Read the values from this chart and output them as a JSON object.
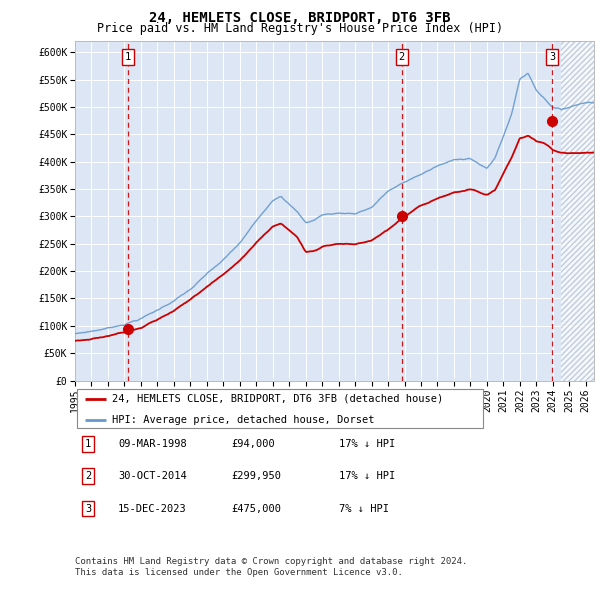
{
  "title": "24, HEMLETS CLOSE, BRIDPORT, DT6 3FB",
  "subtitle": "Price paid vs. HM Land Registry's House Price Index (HPI)",
  "ylim": [
    0,
    620000
  ],
  "yticks": [
    0,
    50000,
    100000,
    150000,
    200000,
    250000,
    300000,
    350000,
    400000,
    450000,
    500000,
    550000,
    600000
  ],
  "ytick_labels": [
    "£0",
    "£50K",
    "£100K",
    "£150K",
    "£200K",
    "£250K",
    "£300K",
    "£350K",
    "£400K",
    "£450K",
    "£500K",
    "£550K",
    "£600K"
  ],
  "xlim_start": 1995.0,
  "xlim_end": 2026.5,
  "hpi_color": "#6699cc",
  "price_color": "#cc0000",
  "dot_color": "#cc0000",
  "vline_color": "#cc0000",
  "plot_bg_color": "#dce6f5",
  "hatch_start": 2024.5,
  "sale1_date": 1998.19,
  "sale1_price": 94000,
  "sale1_label": "1",
  "sale2_date": 2014.83,
  "sale2_price": 299950,
  "sale2_label": "2",
  "sale3_date": 2023.96,
  "sale3_price": 475000,
  "sale3_label": "3",
  "legend_line1": "24, HEMLETS CLOSE, BRIDPORT, DT6 3FB (detached house)",
  "legend_line2": "HPI: Average price, detached house, Dorset",
  "table_rows": [
    {
      "num": "1",
      "date": "09-MAR-1998",
      "price": "£94,000",
      "change": "17% ↓ HPI"
    },
    {
      "num": "2",
      "date": "30-OCT-2014",
      "price": "£299,950",
      "change": "17% ↓ HPI"
    },
    {
      "num": "3",
      "date": "15-DEC-2023",
      "price": "£475,000",
      "change": "7% ↓ HPI"
    }
  ],
  "footnote1": "Contains HM Land Registry data © Crown copyright and database right 2024.",
  "footnote2": "This data is licensed under the Open Government Licence v3.0.",
  "title_fontsize": 10,
  "subtitle_fontsize": 8.5,
  "tick_fontsize": 7,
  "legend_fontsize": 7.5,
  "table_fontsize": 7.5,
  "footnote_fontsize": 6.5
}
